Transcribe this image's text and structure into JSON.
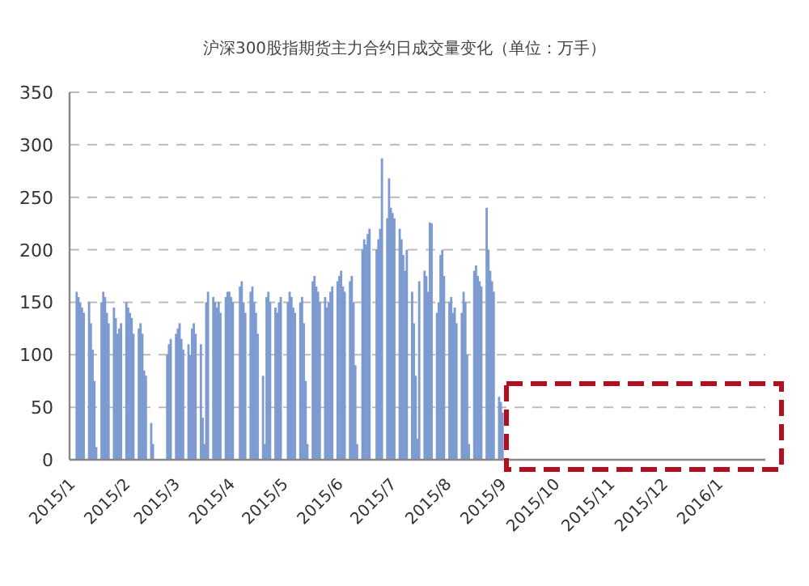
{
  "chart_data": {
    "type": "bar",
    "title": "沪深300股指期货主力合约日成交量变化（单位：万手）",
    "color": "#7d9bd0",
    "grid": "y",
    "ylim": [
      0,
      350
    ],
    "yticks": [
      0,
      50,
      100,
      150,
      200,
      250,
      300,
      350
    ],
    "xlim": [
      "2015-01-01",
      "2016-01-28"
    ],
    "xticks": [
      {
        "value": "2015-01",
        "label": "2015/1"
      },
      {
        "value": "2015-02",
        "label": "2015/2"
      },
      {
        "value": "2015-03",
        "label": "2015/3"
      },
      {
        "value": "2015-04",
        "label": "2015/4"
      },
      {
        "value": "2015-05",
        "label": "2015/5"
      },
      {
        "value": "2015-06",
        "label": "2015/6"
      },
      {
        "value": "2015-07",
        "label": "2015/7"
      },
      {
        "value": "2015-08",
        "label": "2015/8"
      },
      {
        "value": "2015-09",
        "label": "2015/9"
      },
      {
        "value": "2015-10",
        "label": "2015/10"
      },
      {
        "value": "2015-11",
        "label": "2015/11"
      },
      {
        "value": "2015-12",
        "label": "2015/12"
      },
      {
        "value": "2016-01",
        "label": "2016/1"
      }
    ],
    "x": [
      "2015-01-05",
      "2015-01-06",
      "2015-01-07",
      "2015-01-08",
      "2015-01-09",
      "2015-01-12",
      "2015-01-13",
      "2015-01-14",
      "2015-01-15",
      "2015-01-16",
      "2015-01-19",
      "2015-01-20",
      "2015-01-21",
      "2015-01-22",
      "2015-01-23",
      "2015-01-26",
      "2015-01-27",
      "2015-01-28",
      "2015-01-29",
      "2015-01-30",
      "2015-02-02",
      "2015-02-03",
      "2015-02-04",
      "2015-02-05",
      "2015-02-06",
      "2015-02-09",
      "2015-02-10",
      "2015-02-11",
      "2015-02-12",
      "2015-02-13",
      "2015-02-16",
      "2015-02-17",
      "2015-02-25",
      "2015-02-26",
      "2015-02-27",
      "2015-03-02",
      "2015-03-03",
      "2015-03-04",
      "2015-03-05",
      "2015-03-06",
      "2015-03-09",
      "2015-03-10",
      "2015-03-11",
      "2015-03-12",
      "2015-03-13",
      "2015-03-16",
      "2015-03-17",
      "2015-03-18",
      "2015-03-19",
      "2015-03-20",
      "2015-03-23",
      "2015-03-24",
      "2015-03-25",
      "2015-03-26",
      "2015-03-27",
      "2015-03-30",
      "2015-03-31",
      "2015-04-01",
      "2015-04-02",
      "2015-04-03",
      "2015-04-07",
      "2015-04-08",
      "2015-04-09",
      "2015-04-10",
      "2015-04-13",
      "2015-04-14",
      "2015-04-15",
      "2015-04-16",
      "2015-04-17",
      "2015-04-20",
      "2015-04-21",
      "2015-04-22",
      "2015-04-23",
      "2015-04-24",
      "2015-04-27",
      "2015-04-28",
      "2015-04-29",
      "2015-04-30",
      "2015-05-04",
      "2015-05-05",
      "2015-05-06",
      "2015-05-07",
      "2015-05-08",
      "2015-05-11",
      "2015-05-12",
      "2015-05-13",
      "2015-05-14",
      "2015-05-15",
      "2015-05-18",
      "2015-05-19",
      "2015-05-20",
      "2015-05-21",
      "2015-05-22",
      "2015-05-25",
      "2015-05-26",
      "2015-05-27",
      "2015-05-28",
      "2015-05-29",
      "2015-06-01",
      "2015-06-02",
      "2015-06-03",
      "2015-06-04",
      "2015-06-05",
      "2015-06-08",
      "2015-06-09",
      "2015-06-10",
      "2015-06-11",
      "2015-06-12",
      "2015-06-15",
      "2015-06-16",
      "2015-06-17",
      "2015-06-18",
      "2015-06-19",
      "2015-06-23",
      "2015-06-24",
      "2015-06-25",
      "2015-06-26",
      "2015-06-29",
      "2015-06-30",
      "2015-07-01",
      "2015-07-02",
      "2015-07-03",
      "2015-07-06",
      "2015-07-07",
      "2015-07-08",
      "2015-07-09",
      "2015-07-10",
      "2015-07-13",
      "2015-07-14",
      "2015-07-15",
      "2015-07-16",
      "2015-07-17",
      "2015-07-20",
      "2015-07-21",
      "2015-07-22",
      "2015-07-23",
      "2015-07-24",
      "2015-07-27",
      "2015-07-28",
      "2015-07-29",
      "2015-07-30",
      "2015-07-31",
      "2015-08-03",
      "2015-08-04",
      "2015-08-05",
      "2015-08-06",
      "2015-08-07",
      "2015-08-10",
      "2015-08-11",
      "2015-08-12",
      "2015-08-13",
      "2015-08-14",
      "2015-08-17",
      "2015-08-18",
      "2015-08-19",
      "2015-08-20",
      "2015-08-21",
      "2015-08-24",
      "2015-08-25",
      "2015-08-26",
      "2015-08-27",
      "2015-08-28",
      "2015-08-31",
      "2015-09-01",
      "2015-09-02"
    ],
    "values": [
      160,
      155,
      150,
      145,
      140,
      150,
      130,
      105,
      75,
      12,
      150,
      160,
      155,
      140,
      130,
      145,
      135,
      120,
      125,
      130,
      150,
      145,
      140,
      135,
      120,
      125,
      130,
      120,
      85,
      80,
      35,
      15,
      100,
      110,
      115,
      120,
      125,
      130,
      115,
      105,
      110,
      100,
      125,
      130,
      120,
      110,
      40,
      15,
      150,
      160,
      155,
      150,
      145,
      150,
      140,
      155,
      160,
      160,
      155,
      150,
      165,
      170,
      150,
      140,
      160,
      165,
      150,
      140,
      120,
      80,
      15,
      155,
      160,
      150,
      145,
      140,
      150,
      155,
      150,
      160,
      155,
      145,
      140,
      150,
      155,
      130,
      75,
      15,
      170,
      175,
      165,
      160,
      150,
      155,
      145,
      150,
      160,
      165,
      170,
      175,
      180,
      165,
      160,
      170,
      175,
      150,
      90,
      15,
      200,
      210,
      205,
      215,
      220,
      200,
      210,
      220,
      287,
      230,
      268,
      240,
      235,
      230,
      220,
      210,
      195,
      180,
      200,
      160,
      130,
      80,
      20,
      170,
      180,
      175,
      160,
      226,
      225,
      140,
      150,
      195,
      200,
      175,
      150,
      155,
      140,
      145,
      130,
      140,
      160,
      150,
      100,
      15,
      180,
      185,
      175,
      170,
      165,
      240,
      200,
      180,
      170,
      160,
      60,
      55,
      45
    ]
  }
}
